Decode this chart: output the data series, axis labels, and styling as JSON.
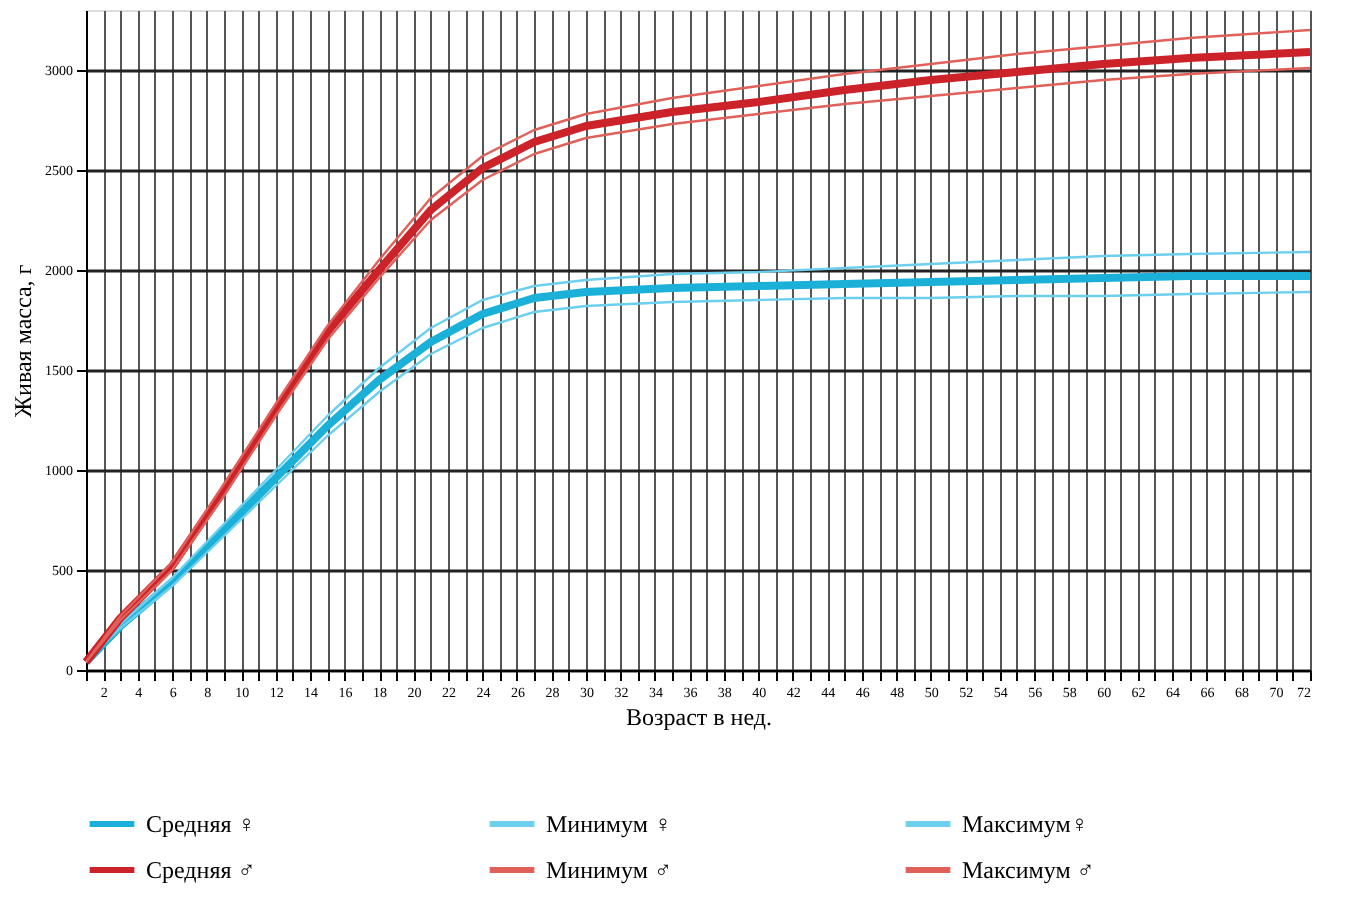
{
  "chart_data": {
    "type": "line",
    "xlabel": "Возраст в нед.",
    "ylabel": "Живая масса, г",
    "x": [
      1,
      3,
      6,
      9,
      12,
      15,
      18,
      21,
      24,
      27,
      30,
      35,
      40,
      45,
      50,
      55,
      60,
      65,
      72
    ],
    "series": [
      {
        "name": "Средняя ♀",
        "color": "#1bb0d8",
        "values": [
          40,
          220,
          440,
          700,
          960,
          1220,
          1450,
          1640,
          1780,
          1860,
          1890,
          1910,
          1920,
          1930,
          1940,
          1950,
          1960,
          1970,
          1970
        ]
      },
      {
        "name": "Минимум ♀",
        "color": "#6ccfee",
        "values": [
          40,
          210,
          420,
          670,
          920,
          1170,
          1390,
          1580,
          1710,
          1790,
          1820,
          1840,
          1850,
          1860,
          1860,
          1870,
          1870,
          1880,
          1890
        ]
      },
      {
        "name": "Максимум♀",
        "color": "#6ccfee",
        "values": [
          40,
          230,
          460,
          730,
          1000,
          1270,
          1510,
          1710,
          1850,
          1920,
          1950,
          1980,
          1990,
          2010,
          2030,
          2050,
          2070,
          2080,
          2090
        ]
      },
      {
        "name": "Средняя ♂",
        "color": "#cc2229",
        "values": [
          40,
          260,
          520,
          900,
          1300,
          1690,
          2000,
          2300,
          2510,
          2640,
          2720,
          2790,
          2840,
          2900,
          2950,
          2990,
          3030,
          3060,
          3090
        ]
      },
      {
        "name": "Минимум ♂",
        "color": "#e0605a",
        "values": [
          40,
          250,
          500,
          870,
          1270,
          1650,
          1960,
          2250,
          2450,
          2580,
          2660,
          2730,
          2780,
          2830,
          2870,
          2910,
          2950,
          2980,
          3010
        ]
      },
      {
        "name": "Максимум ♂",
        "color": "#e0605a",
        "values": [
          40,
          270,
          540,
          930,
          1330,
          1720,
          2050,
          2360,
          2570,
          2700,
          2780,
          2860,
          2920,
          2980,
          3030,
          3080,
          3120,
          3160,
          3200
        ]
      }
    ],
    "xlim": [
      1,
      72
    ],
    "xticks": [
      {
        "value": 1,
        "label": null
      },
      2,
      {
        "value": 3,
        "label": null
      },
      4,
      {
        "value": 5,
        "label": null
      },
      6,
      {
        "value": 7,
        "label": null
      },
      8,
      {
        "value": 9,
        "label": null
      },
      10,
      {
        "value": 11,
        "label": null
      },
      12,
      {
        "value": 13,
        "label": null
      },
      14,
      {
        "value": 15,
        "label": null
      },
      16,
      {
        "value": 17,
        "label": null
      },
      18,
      {
        "value": 19,
        "label": null
      },
      20,
      {
        "value": 21,
        "label": null
      },
      22,
      {
        "value": 23,
        "label": null
      },
      24,
      {
        "value": 25,
        "label": null
      },
      26,
      {
        "value": 27,
        "label": null
      },
      28,
      {
        "value": 29,
        "label": null
      },
      30,
      {
        "value": 31,
        "label": null
      },
      32,
      {
        "value": 33,
        "label": null
      },
      34,
      {
        "value": 35,
        "label": null
      },
      36,
      {
        "value": 37,
        "label": null
      },
      38,
      {
        "value": 39,
        "label": null
      },
      40,
      {
        "value": 41,
        "label": null
      },
      42,
      {
        "value": 43,
        "label": null
      },
      44,
      {
        "value": 45,
        "label": null
      },
      46,
      {
        "value": 47,
        "label": null
      },
      48,
      {
        "value": 49,
        "label": null
      },
      50,
      {
        "value": 51,
        "label": null
      },
      52,
      {
        "value": 53,
        "label": null
      },
      54,
      {
        "value": 55,
        "label": null
      },
      56,
      {
        "value": 57,
        "label": null
      },
      58,
      {
        "value": 59,
        "label": null
      },
      60,
      {
        "value": 61,
        "label": null
      },
      62,
      {
        "value": 63,
        "label": null
      },
      64,
      {
        "value": 65,
        "label": null
      },
      66,
      {
        "value": 67,
        "label": null
      },
      68,
      {
        "value": 69,
        "label": null
      },
      70,
      {
        "value": 71,
        "label": null
      },
      72
    ],
    "ylim": [
      0,
      3300
    ],
    "yticks": [
      0,
      500,
      1000,
      1500,
      2000,
      2500,
      3000
    ],
    "grid": true,
    "legend": "bottom",
    "marker": "none",
    "line_style": "solid"
  }
}
